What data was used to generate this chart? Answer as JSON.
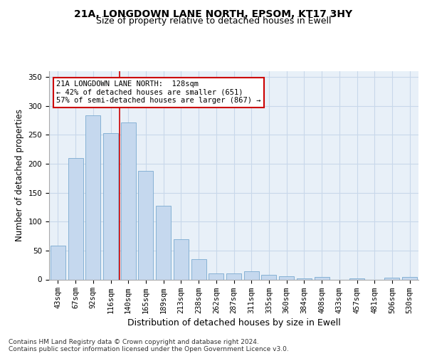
{
  "title_line1": "21A, LONGDOWN LANE NORTH, EPSOM, KT17 3HY",
  "title_line2": "Size of property relative to detached houses in Ewell",
  "xlabel": "Distribution of detached houses by size in Ewell",
  "ylabel": "Number of detached properties",
  "categories": [
    "43sqm",
    "67sqm",
    "92sqm",
    "116sqm",
    "140sqm",
    "165sqm",
    "189sqm",
    "213sqm",
    "238sqm",
    "262sqm",
    "287sqm",
    "311sqm",
    "335sqm",
    "360sqm",
    "384sqm",
    "408sqm",
    "433sqm",
    "457sqm",
    "481sqm",
    "506sqm",
    "530sqm"
  ],
  "values": [
    59,
    210,
    284,
    253,
    271,
    188,
    128,
    69,
    35,
    10,
    11,
    14,
    8,
    5,
    2,
    4,
    0,
    2,
    0,
    3,
    4
  ],
  "bar_color": "#c5d8ee",
  "bar_edge_color": "#7aaad0",
  "grid_color": "#c8d8ea",
  "background_color": "#e8f0f8",
  "vline_color": "#cc0000",
  "vline_x": 3.5,
  "annotation_text": "21A LONGDOWN LANE NORTH:  128sqm\n← 42% of detached houses are smaller (651)\n57% of semi-detached houses are larger (867) →",
  "annotation_box_color": "#ffffff",
  "annotation_box_edge": "#cc0000",
  "ylim": [
    0,
    360
  ],
  "yticks": [
    0,
    50,
    100,
    150,
    200,
    250,
    300,
    350
  ],
  "footer": "Contains HM Land Registry data © Crown copyright and database right 2024.\nContains public sector information licensed under the Open Government Licence v3.0.",
  "title_fontsize": 10,
  "subtitle_fontsize": 9,
  "axis_label_fontsize": 8.5,
  "tick_fontsize": 7.5,
  "footer_fontsize": 6.5,
  "annotation_fontsize": 7.5
}
